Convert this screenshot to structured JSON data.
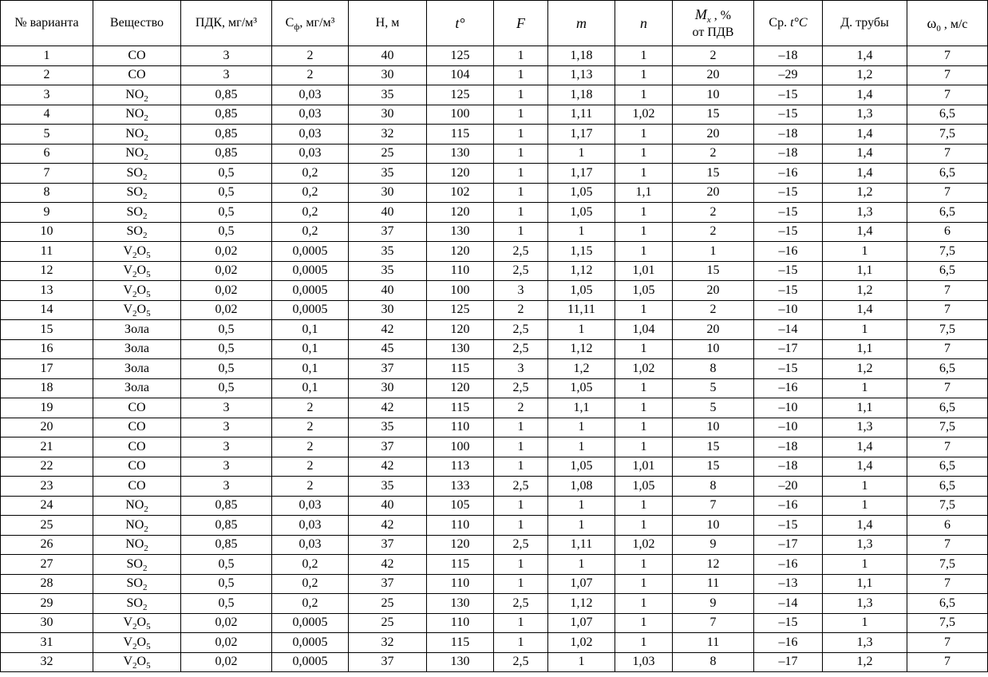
{
  "header": {
    "variant": "№ варианта",
    "substance": "Вещество",
    "pdk": "ПДК, мг/м³",
    "cf": "С",
    "cf_sub": "ф",
    "cf_unit": ", мг/м³",
    "h": "Н, м",
    "t": "t°",
    "f": "F",
    "m": "m",
    "n": "n",
    "mx": "M",
    "mx_sub": "x",
    "mx_pct": " , %",
    "mx_line2": "от ПДВ",
    "avg_t_prefix": "Ср. ",
    "avg_t": "t°C",
    "pipe": "Д. трубы",
    "w0": "ω",
    "w0_sub": "0",
    "w0_unit": " , м/с"
  },
  "rows": [
    {
      "no": "1",
      "sub_main": "CO",
      "sub_sub": "",
      "sub_mid": "",
      "sub_sub2": "",
      "pdk": "3",
      "cf": "2",
      "h": "40",
      "t": "125",
      "f": "1",
      "m": "1,18",
      "n": "1",
      "mx": "2",
      "avgt": "–18",
      "pipe": "1,4",
      "w0": "7"
    },
    {
      "no": "2",
      "sub_main": "CO",
      "sub_sub": "",
      "sub_mid": "",
      "sub_sub2": "",
      "pdk": "3",
      "cf": "2",
      "h": "30",
      "t": "104",
      "f": "1",
      "m": "1,13",
      "n": "1",
      "mx": "20",
      "avgt": "–29",
      "pipe": "1,2",
      "w0": "7"
    },
    {
      "no": "3",
      "sub_main": "NO",
      "sub_sub": "2",
      "sub_mid": "",
      "sub_sub2": "",
      "pdk": "0,85",
      "cf": "0,03",
      "h": "35",
      "t": "125",
      "f": "1",
      "m": "1,18",
      "n": "1",
      "mx": "10",
      "avgt": "–15",
      "pipe": "1,4",
      "w0": "7"
    },
    {
      "no": "4",
      "sub_main": "NO",
      "sub_sub": "2",
      "sub_mid": "",
      "sub_sub2": "",
      "pdk": "0,85",
      "cf": "0,03",
      "h": "30",
      "t": "100",
      "f": "1",
      "m": "1,11",
      "n": "1,02",
      "mx": "15",
      "avgt": "–15",
      "pipe": "1,3",
      "w0": "6,5"
    },
    {
      "no": "5",
      "sub_main": "NO",
      "sub_sub": "2",
      "sub_mid": "",
      "sub_sub2": "",
      "pdk": "0,85",
      "cf": "0,03",
      "h": "32",
      "t": "115",
      "f": "1",
      "m": "1,17",
      "n": "1",
      "mx": "20",
      "avgt": "–18",
      "pipe": "1,4",
      "w0": "7,5"
    },
    {
      "no": "6",
      "sub_main": "NO",
      "sub_sub": "2",
      "sub_mid": "",
      "sub_sub2": "",
      "pdk": "0,85",
      "cf": "0,03",
      "h": "25",
      "t": "130",
      "f": "1",
      "m": "1",
      "n": "1",
      "mx": "2",
      "avgt": "–18",
      "pipe": "1,4",
      "w0": "7"
    },
    {
      "no": "7",
      "sub_main": "SO",
      "sub_sub": "2",
      "sub_mid": "",
      "sub_sub2": "",
      "pdk": "0,5",
      "cf": "0,2",
      "h": "35",
      "t": "120",
      "f": "1",
      "m": "1,17",
      "n": "1",
      "mx": "15",
      "avgt": "–16",
      "pipe": "1,4",
      "w0": "6,5"
    },
    {
      "no": "8",
      "sub_main": "SO",
      "sub_sub": "2",
      "sub_mid": "",
      "sub_sub2": "",
      "pdk": "0,5",
      "cf": "0,2",
      "h": "30",
      "t": "102",
      "f": "1",
      "m": "1,05",
      "n": "1,1",
      "mx": "20",
      "avgt": "–15",
      "pipe": "1,2",
      "w0": "7"
    },
    {
      "no": "9",
      "sub_main": "SO",
      "sub_sub": "2",
      "sub_mid": "",
      "sub_sub2": "",
      "pdk": "0,5",
      "cf": "0,2",
      "h": "40",
      "t": "120",
      "f": "1",
      "m": "1,05",
      "n": "1",
      "mx": "2",
      "avgt": "–15",
      "pipe": "1,3",
      "w0": "6,5"
    },
    {
      "no": "10",
      "sub_main": "SO",
      "sub_sub": "2",
      "sub_mid": "",
      "sub_sub2": "",
      "pdk": "0,5",
      "cf": "0,2",
      "h": "37",
      "t": "130",
      "f": "1",
      "m": "1",
      "n": "1",
      "mx": "2",
      "avgt": "–15",
      "pipe": "1,4",
      "w0": "6"
    },
    {
      "no": "11",
      "sub_main": "V",
      "sub_sub": "2",
      "sub_mid": "O",
      "sub_sub2": "5",
      "pdk": "0,02",
      "cf": "0,0005",
      "h": "35",
      "t": "120",
      "f": "2,5",
      "m": "1,15",
      "n": "1",
      "mx": "1",
      "avgt": "–16",
      "pipe": "1",
      "w0": "7,5"
    },
    {
      "no": "12",
      "sub_main": "V",
      "sub_sub": "2",
      "sub_mid": "O",
      "sub_sub2": "5",
      "pdk": "0,02",
      "cf": "0,0005",
      "h": "35",
      "t": "110",
      "f": "2,5",
      "m": "1,12",
      "n": "1,01",
      "mx": "15",
      "avgt": "–15",
      "pipe": "1,1",
      "w0": "6,5"
    },
    {
      "no": "13",
      "sub_main": "V",
      "sub_sub": "2",
      "sub_mid": "O",
      "sub_sub2": "5",
      "pdk": "0,02",
      "cf": "0,0005",
      "h": "40",
      "t": "100",
      "f": "3",
      "m": "1,05",
      "n": "1,05",
      "mx": "20",
      "avgt": "–15",
      "pipe": "1,2",
      "w0": "7"
    },
    {
      "no": "14",
      "sub_main": "V",
      "sub_sub": "2",
      "sub_mid": "O",
      "sub_sub2": "5",
      "pdk": "0,02",
      "cf": "0,0005",
      "h": "30",
      "t": "125",
      "f": "2",
      "m": "11,11",
      "n": "1",
      "mx": "2",
      "avgt": "–10",
      "pipe": "1,4",
      "w0": "7"
    },
    {
      "no": "15",
      "sub_main": "Зола",
      "sub_sub": "",
      "sub_mid": "",
      "sub_sub2": "",
      "pdk": "0,5",
      "cf": "0,1",
      "h": "42",
      "t": "120",
      "f": "2,5",
      "m": "1",
      "n": "1,04",
      "mx": "20",
      "avgt": "–14",
      "pipe": "1",
      "w0": "7,5"
    },
    {
      "no": "16",
      "sub_main": "Зола",
      "sub_sub": "",
      "sub_mid": "",
      "sub_sub2": "",
      "pdk": "0,5",
      "cf": "0,1",
      "h": "45",
      "t": "130",
      "f": "2,5",
      "m": "1,12",
      "n": "1",
      "mx": "10",
      "avgt": "–17",
      "pipe": "1,1",
      "w0": "7"
    },
    {
      "no": "17",
      "sub_main": "Зола",
      "sub_sub": "",
      "sub_mid": "",
      "sub_sub2": "",
      "pdk": "0,5",
      "cf": "0,1",
      "h": "37",
      "t": "115",
      "f": "3",
      "m": "1,2",
      "n": "1,02",
      "mx": "8",
      "avgt": "–15",
      "pipe": "1,2",
      "w0": "6,5"
    },
    {
      "no": "18",
      "sub_main": "Зола",
      "sub_sub": "",
      "sub_mid": "",
      "sub_sub2": "",
      "pdk": "0,5",
      "cf": "0,1",
      "h": "30",
      "t": "120",
      "f": "2,5",
      "m": "1,05",
      "n": "1",
      "mx": "5",
      "avgt": "–16",
      "pipe": "1",
      "w0": "7"
    },
    {
      "no": "19",
      "sub_main": "CO",
      "sub_sub": "",
      "sub_mid": "",
      "sub_sub2": "",
      "pdk": "3",
      "cf": "2",
      "h": "42",
      "t": "115",
      "f": "2",
      "m": "1,1",
      "n": "1",
      "mx": "5",
      "avgt": "–10",
      "pipe": "1,1",
      "w0": "6,5"
    },
    {
      "no": "20",
      "sub_main": "CO",
      "sub_sub": "",
      "sub_mid": "",
      "sub_sub2": "",
      "pdk": "3",
      "cf": "2",
      "h": "35",
      "t": "110",
      "f": "1",
      "m": "1",
      "n": "1",
      "mx": "10",
      "avgt": "–10",
      "pipe": "1,3",
      "w0": "7,5"
    },
    {
      "no": "21",
      "sub_main": "CO",
      "sub_sub": "",
      "sub_mid": "",
      "sub_sub2": "",
      "pdk": "3",
      "cf": "2",
      "h": "37",
      "t": "100",
      "f": "1",
      "m": "1",
      "n": "1",
      "mx": "15",
      "avgt": "–18",
      "pipe": "1,4",
      "w0": "7"
    },
    {
      "no": "22",
      "sub_main": "CO",
      "sub_sub": "",
      "sub_mid": "",
      "sub_sub2": "",
      "pdk": "3",
      "cf": "2",
      "h": "42",
      "t": "113",
      "f": "1",
      "m": "1,05",
      "n": "1,01",
      "mx": "15",
      "avgt": "–18",
      "pipe": "1,4",
      "w0": "6,5"
    },
    {
      "no": "23",
      "sub_main": "CO",
      "sub_sub": "",
      "sub_mid": "",
      "sub_sub2": "",
      "pdk": "3",
      "cf": "2",
      "h": "35",
      "t": "133",
      "f": "2,5",
      "m": "1,08",
      "n": "1,05",
      "mx": "8",
      "avgt": "–20",
      "pipe": "1",
      "w0": "6,5"
    },
    {
      "no": "24",
      "sub_main": "NO",
      "sub_sub": "2",
      "sub_mid": "",
      "sub_sub2": "",
      "pdk": "0,85",
      "cf": "0,03",
      "h": "40",
      "t": "105",
      "f": "1",
      "m": "1",
      "n": "1",
      "mx": "7",
      "avgt": "–16",
      "pipe": "1",
      "w0": "7,5"
    },
    {
      "no": "25",
      "sub_main": "NO",
      "sub_sub": "2",
      "sub_mid": "",
      "sub_sub2": "",
      "pdk": "0,85",
      "cf": "0,03",
      "h": "42",
      "t": "110",
      "f": "1",
      "m": "1",
      "n": "1",
      "mx": "10",
      "avgt": "–15",
      "pipe": "1,4",
      "w0": "6"
    },
    {
      "no": "26",
      "sub_main": "NO",
      "sub_sub": "2",
      "sub_mid": "",
      "sub_sub2": "",
      "pdk": "0,85",
      "cf": "0,03",
      "h": "37",
      "t": "120",
      "f": "2,5",
      "m": "1,11",
      "n": "1,02",
      "mx": "9",
      "avgt": "–17",
      "pipe": "1,3",
      "w0": "7"
    },
    {
      "no": "27",
      "sub_main": "SO",
      "sub_sub": "2",
      "sub_mid": "",
      "sub_sub2": "",
      "pdk": "0,5",
      "cf": "0,2",
      "h": "42",
      "t": "115",
      "f": "1",
      "m": "1",
      "n": "1",
      "mx": "12",
      "avgt": "–16",
      "pipe": "1",
      "w0": "7,5"
    },
    {
      "no": "28",
      "sub_main": "SO",
      "sub_sub": "2",
      "sub_mid": "",
      "sub_sub2": "",
      "pdk": "0,5",
      "cf": "0,2",
      "h": "37",
      "t": "110",
      "f": "1",
      "m": "1,07",
      "n": "1",
      "mx": "11",
      "avgt": "–13",
      "pipe": "1,1",
      "w0": "7"
    },
    {
      "no": "29",
      "sub_main": "SO",
      "sub_sub": "2",
      "sub_mid": "",
      "sub_sub2": "",
      "pdk": "0,5",
      "cf": "0,2",
      "h": "25",
      "t": "130",
      "f": "2,5",
      "m": "1,12",
      "n": "1",
      "mx": "9",
      "avgt": "–14",
      "pipe": "1,3",
      "w0": "6,5"
    },
    {
      "no": "30",
      "sub_main": "V",
      "sub_sub": "2",
      "sub_mid": "O",
      "sub_sub2": "5",
      "pdk": "0,02",
      "cf": "0,0005",
      "h": "25",
      "t": "110",
      "f": "1",
      "m": "1,07",
      "n": "1",
      "mx": "7",
      "avgt": "–15",
      "pipe": "1",
      "w0": "7,5"
    },
    {
      "no": "31",
      "sub_main": "V",
      "sub_sub": "2",
      "sub_mid": "O",
      "sub_sub2": "5",
      "pdk": "0,02",
      "cf": "0,0005",
      "h": "32",
      "t": "115",
      "f": "1",
      "m": "1,02",
      "n": "1",
      "mx": "11",
      "avgt": "–16",
      "pipe": "1,3",
      "w0": "7"
    },
    {
      "no": "32",
      "sub_main": "V",
      "sub_sub": "2",
      "sub_mid": "O",
      "sub_sub2": "5",
      "pdk": "0,02",
      "cf": "0,0005",
      "h": "37",
      "t": "130",
      "f": "2,5",
      "m": "1",
      "n": "1,03",
      "mx": "8",
      "avgt": "–17",
      "pipe": "1,2",
      "w0": "7"
    }
  ]
}
